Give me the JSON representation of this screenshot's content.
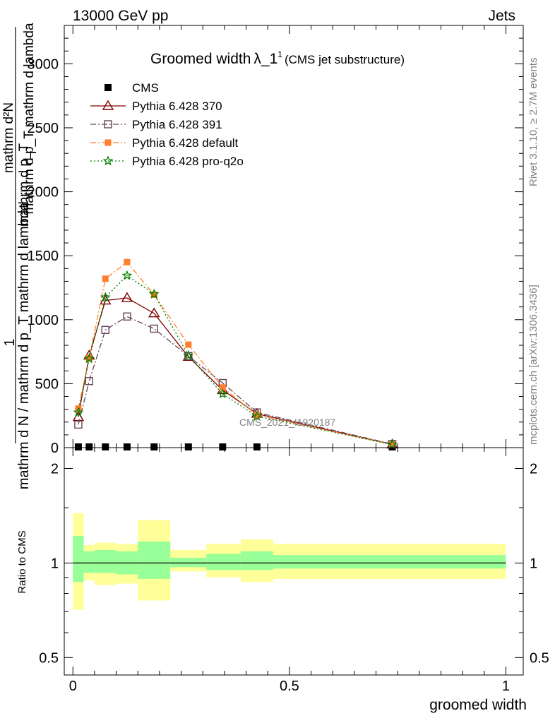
{
  "header": {
    "left": "13000 GeV pp",
    "right": "Jets"
  },
  "title": {
    "main": "Groomed width",
    "lambda": "λ_1",
    "sup": "1",
    "sub": "(CMS jet substructure)"
  },
  "side_text": {
    "top": "Rivet 3.1.10, ≥ 2.7M events",
    "bottom": "mcplots.cern.ch [arXiv:1306.3436]"
  },
  "watermark": "CMS_2021_I1920187",
  "ylabel_main": {
    "numerator": "mathrm d²N",
    "denominator": "mathrm d p_T mathrm d lambda",
    "denominator2": "mathrm d p_T",
    "one": "1",
    "outer_denominator": "mathrm d N / mathrm d p_T mathrm d lambda"
  },
  "ylabel_ratio": "Ratio to CMS",
  "xlabel": "groomed width",
  "colors": {
    "cms": "#000000",
    "p370": "#7f0000",
    "p391": "#664455",
    "pdefault": "#ff7f2a",
    "pq2o": "#008000",
    "band_inner": "#99ff99",
    "band_outer": "#ffff99"
  },
  "chart_data": [
    {
      "type": "line",
      "panel": "main",
      "xlim": [
        -0.02,
        1.04
      ],
      "ylim": [
        0,
        3300
      ],
      "x_ticks": [
        0,
        0.5,
        1
      ],
      "y_ticks": [
        0,
        500,
        1000,
        1500,
        2000,
        2500,
        3000
      ],
      "y_tick_labels": [
        "0",
        "500",
        "1000",
        "1500",
        "2000",
        "2500",
        "3000"
      ],
      "x": [
        0.0125,
        0.0375,
        0.075,
        0.125,
        0.1875,
        0.2667,
        0.3458,
        0.425,
        0.7375
      ],
      "series": [
        {
          "name": "CMS",
          "style": "square-marker",
          "values": [
            0,
            0,
            0,
            0,
            0,
            0,
            0,
            0,
            0
          ]
        },
        {
          "name": "Pythia 6.428 370",
          "style": "solid-triangle",
          "values": [
            240,
            720,
            1150,
            1170,
            1050,
            710,
            450,
            265,
            25
          ]
        },
        {
          "name": "Pythia 6.428 391",
          "style": "dashdot-open-square",
          "values": [
            180,
            520,
            920,
            1025,
            930,
            715,
            505,
            275,
            28
          ]
        },
        {
          "name": "Pythia 6.428 default",
          "style": "dashdot-filled-square",
          "values": [
            305,
            700,
            1320,
            1450,
            1195,
            805,
            470,
            255,
            25
          ]
        },
        {
          "name": "Pythia 6.428 pro-q2o",
          "style": "dotted-star",
          "values": [
            275,
            695,
            1175,
            1345,
            1200,
            720,
            420,
            245,
            25
          ]
        }
      ]
    },
    {
      "type": "area",
      "panel": "ratio",
      "xlim": [
        -0.02,
        1.04
      ],
      "ylim": [
        0.44,
        2.33
      ],
      "y_log": true,
      "x_ticks": [
        0,
        0.5,
        1
      ],
      "x_tick_labels": [
        "0",
        "0.5",
        "1"
      ],
      "y_ticks": [
        0.5,
        1,
        2
      ],
      "y_tick_labels": [
        "0.5",
        "1",
        "2"
      ],
      "bins": [
        0,
        0.025,
        0.05,
        0.1,
        0.15,
        0.225,
        0.3083,
        0.3875,
        0.4625,
        1.0
      ],
      "inner_band": [
        [
          0.87,
          1.22
        ],
        [
          0.93,
          1.09
        ],
        [
          0.93,
          1.1
        ],
        [
          0.92,
          1.09
        ],
        [
          0.89,
          1.17
        ],
        [
          0.97,
          1.04
        ],
        [
          0.95,
          1.07
        ],
        [
          0.95,
          1.09
        ],
        [
          0.96,
          1.06
        ]
      ],
      "outer_band": [
        [
          0.71,
          1.44
        ],
        [
          0.88,
          1.14
        ],
        [
          0.85,
          1.16
        ],
        [
          0.86,
          1.15
        ],
        [
          0.76,
          1.37
        ],
        [
          0.94,
          1.1
        ],
        [
          0.9,
          1.15
        ],
        [
          0.87,
          1.19
        ],
        [
          0.89,
          1.15
        ]
      ],
      "reference": 1
    }
  ]
}
